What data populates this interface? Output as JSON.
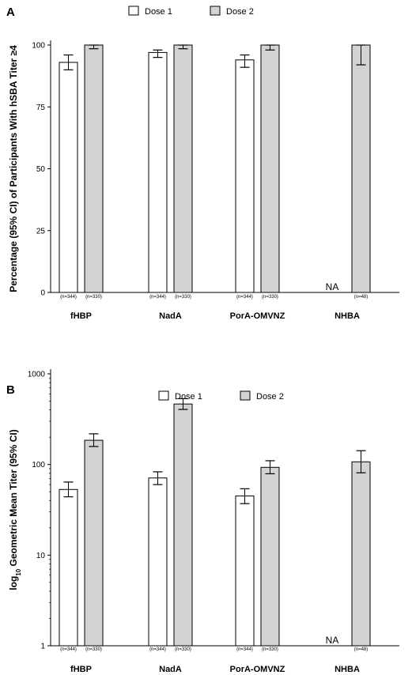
{
  "colors": {
    "dose1": "#ffffff",
    "dose2": "#d3d3d3",
    "stroke": "#000000"
  },
  "chart_data": [
    {
      "panel": "A",
      "type": "bar",
      "ylabel": "Percentage (95% CI) of Participants With hSBA Titer ≥4",
      "ylim": [
        0,
        100
      ],
      "yticks": [
        0,
        25,
        50,
        75,
        100
      ],
      "scale": "linear",
      "legend": {
        "placement": "top-center",
        "entries": [
          "Dose 1",
          "Dose 2"
        ]
      },
      "categories": [
        "fHBP",
        "NadA",
        "PorA-OMVNZ",
        "NHBA"
      ],
      "sample_sizes": [
        [
          "(n=344)",
          "(n=330)"
        ],
        [
          "(n=344)",
          "(n=330)"
        ],
        [
          "(n=344)",
          "(n=330)"
        ],
        [
          "",
          "(n=48)"
        ]
      ],
      "na_label": "NA",
      "series": [
        {
          "name": "Dose 1",
          "values": [
            93,
            97,
            94,
            null
          ],
          "ci_low": [
            90,
            95,
            91,
            null
          ],
          "ci_high": [
            96,
            98,
            96,
            null
          ]
        },
        {
          "name": "Dose 2",
          "values": [
            100,
            100,
            100,
            100
          ],
          "ci_low": [
            98.5,
            98.5,
            98,
            92
          ],
          "ci_high": [
            100,
            100,
            100,
            100
          ]
        }
      ]
    },
    {
      "panel": "B",
      "type": "bar",
      "ylabel_prefix": "log",
      "ylabel_sub": "10",
      "ylabel_rest": " Geometric Mean Titer (95% CI)",
      "ylim": [
        1,
        1000
      ],
      "yticks": [
        1,
        10,
        100,
        1000
      ],
      "scale": "log",
      "legend": {
        "placement": "top-center",
        "entries": [
          "Dose 1",
          "Dose 2"
        ]
      },
      "categories": [
        "fHBP",
        "NadA",
        "PorA-OMVNZ",
        "NHBA"
      ],
      "sample_sizes": [
        [
          "(n=344)",
          "(n=330)"
        ],
        [
          "(n=344)",
          "(n=330)"
        ],
        [
          "(n=344)",
          "(n=330)"
        ],
        [
          "",
          "(n=48)"
        ]
      ],
      "na_label": "NA",
      "series": [
        {
          "name": "Dose 1",
          "values": [
            53,
            71,
            45,
            null
          ],
          "ci_low": [
            44,
            60,
            37,
            null
          ],
          "ci_high": [
            64,
            83,
            54,
            null
          ]
        },
        {
          "name": "Dose 2",
          "values": [
            185,
            465,
            93,
            107
          ],
          "ci_low": [
            158,
            405,
            79,
            81
          ],
          "ci_high": [
            218,
            532,
            110,
            142
          ]
        }
      ]
    }
  ]
}
